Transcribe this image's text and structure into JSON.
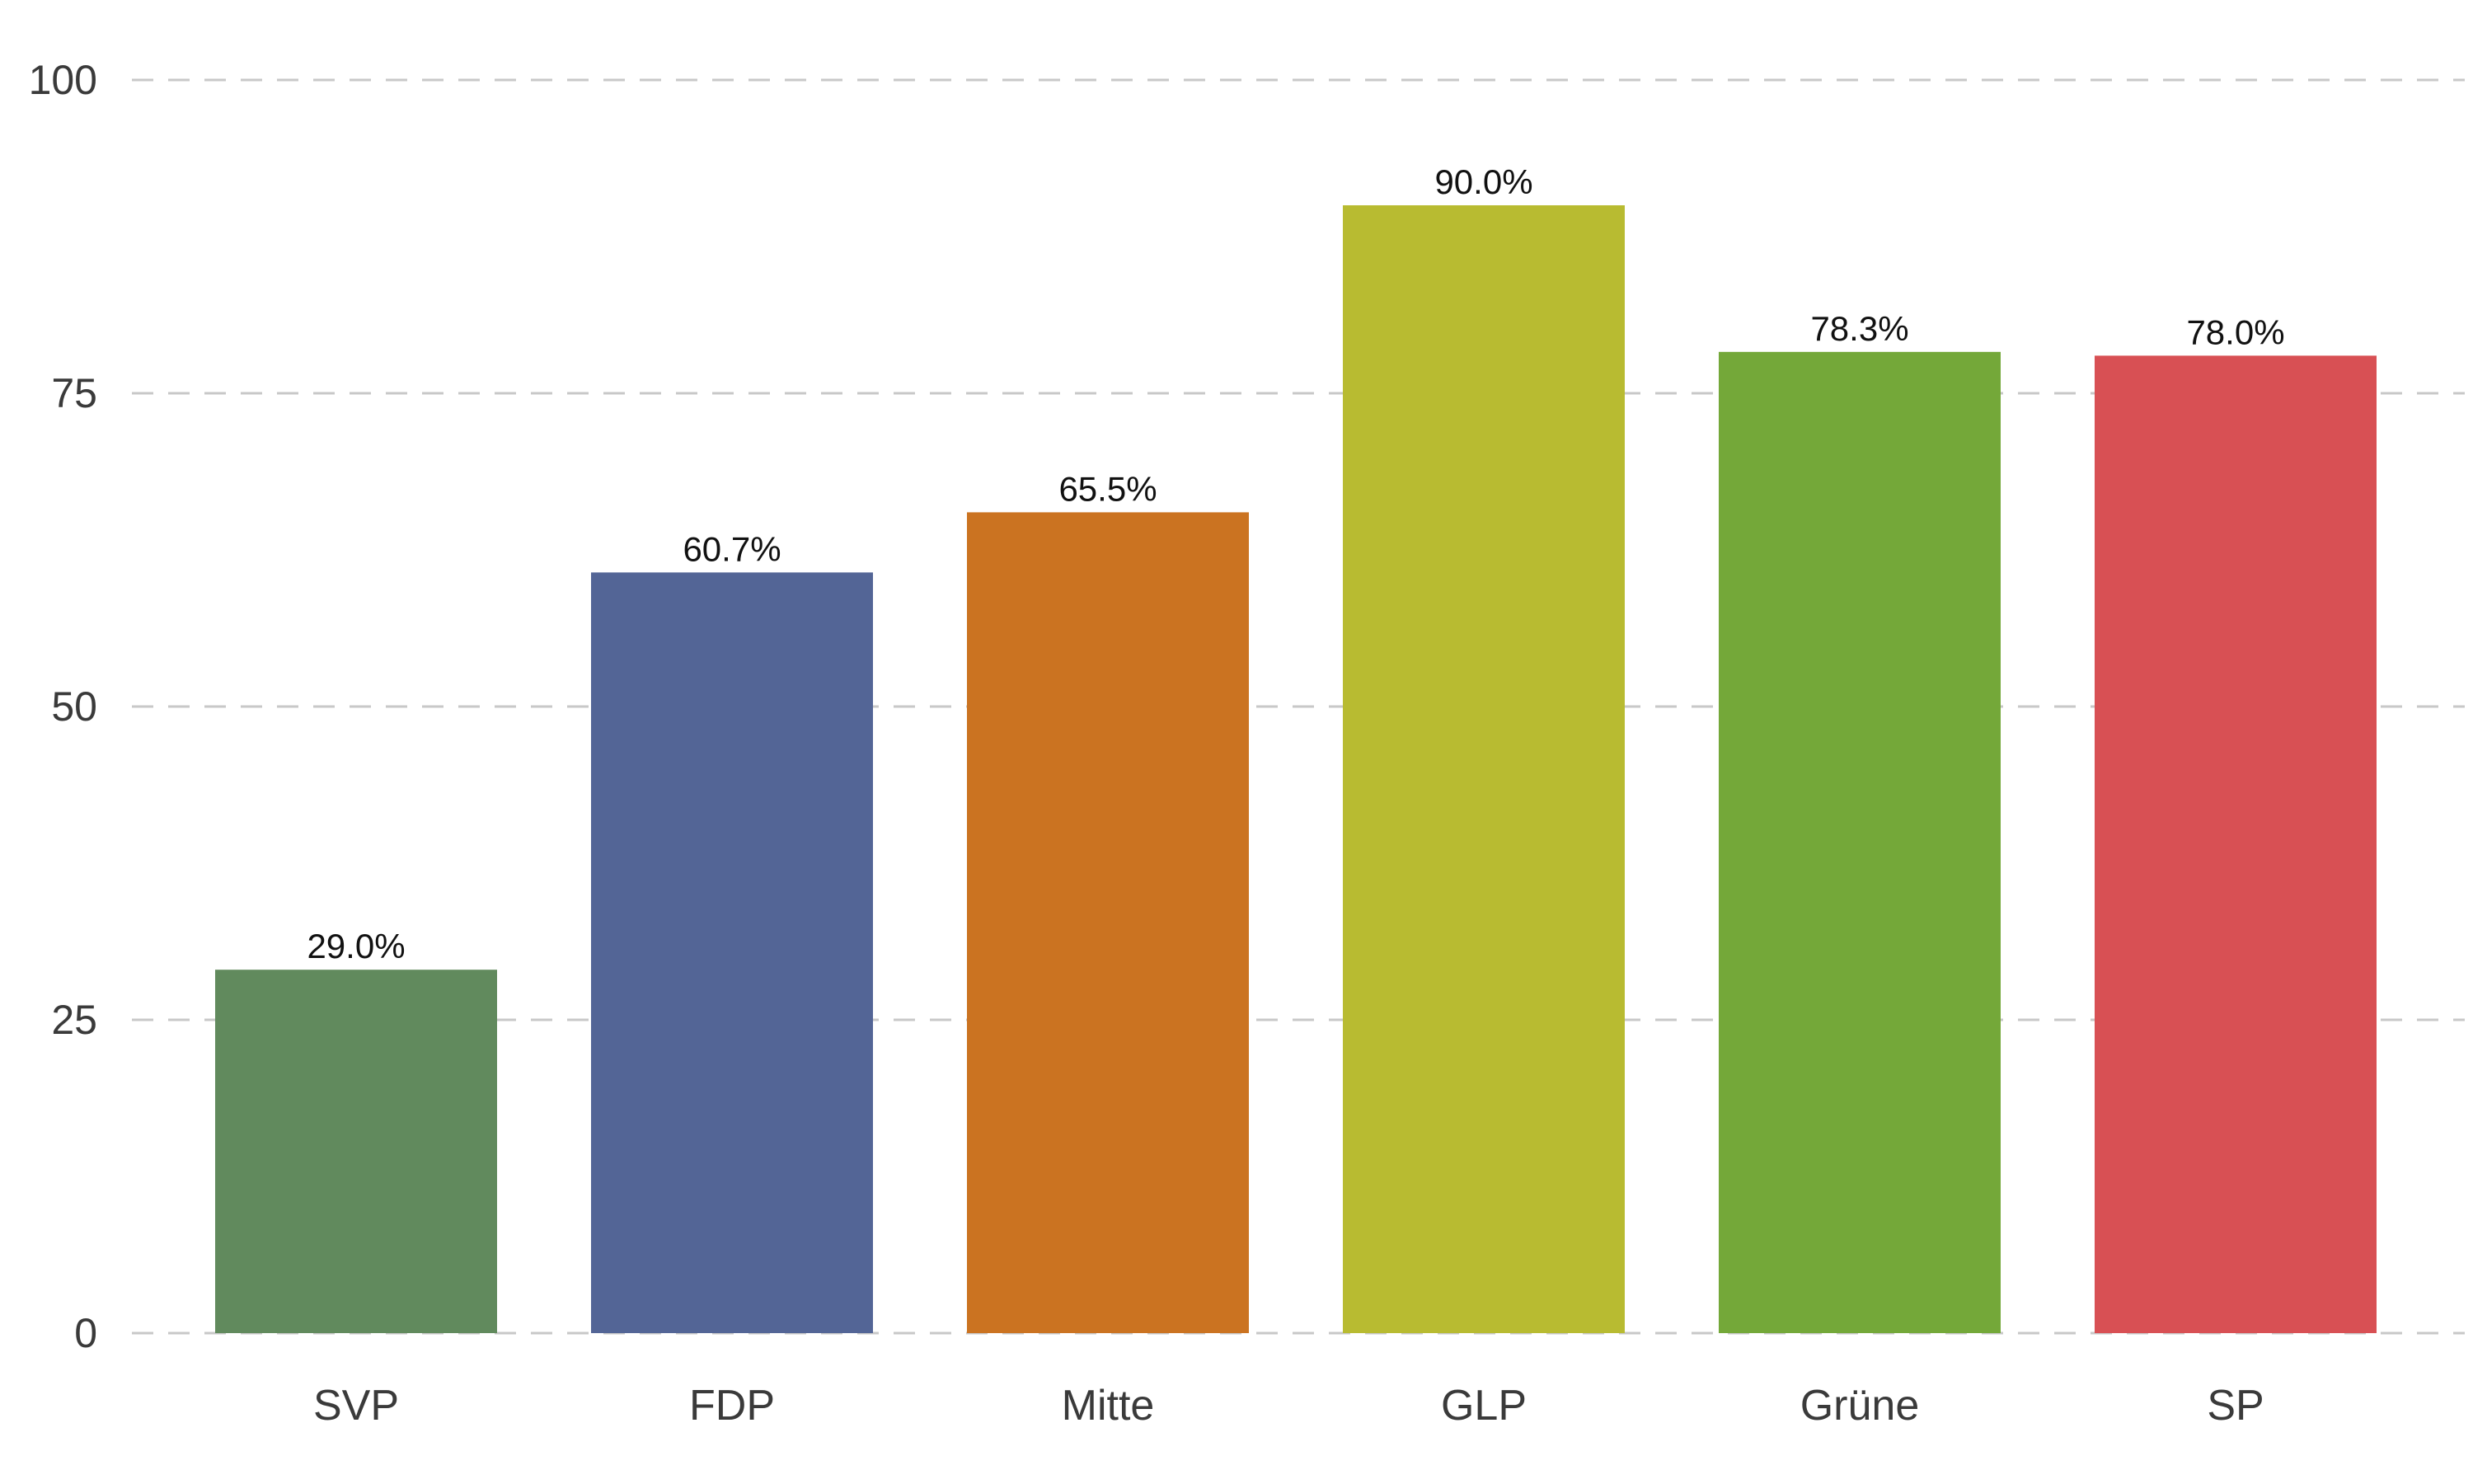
{
  "chart_data": {
    "type": "bar",
    "categories": [
      "SVP",
      "FDP",
      "Mitte",
      "GLP",
      "Grüne",
      "SP"
    ],
    "values": [
      29.0,
      60.7,
      65.5,
      90.0,
      78.3,
      78.0
    ],
    "data_labels": [
      "29.0%",
      "60.7%",
      "65.5%",
      "90.0%",
      "78.3%",
      "78.0%"
    ],
    "colors": [
      "#618a5d",
      "#536596",
      "#cb7321",
      "#b8bb31",
      "#74a839",
      "#d85054"
    ],
    "title": "",
    "xlabel": "",
    "ylabel": "",
    "ylim": [
      0,
      100
    ],
    "yticks": [
      0,
      25,
      50,
      75,
      100
    ],
    "ytick_labels": [
      "0",
      "25",
      "50",
      "75",
      "100"
    ],
    "grid": true,
    "grid_style": "dashed",
    "legend": "none"
  }
}
